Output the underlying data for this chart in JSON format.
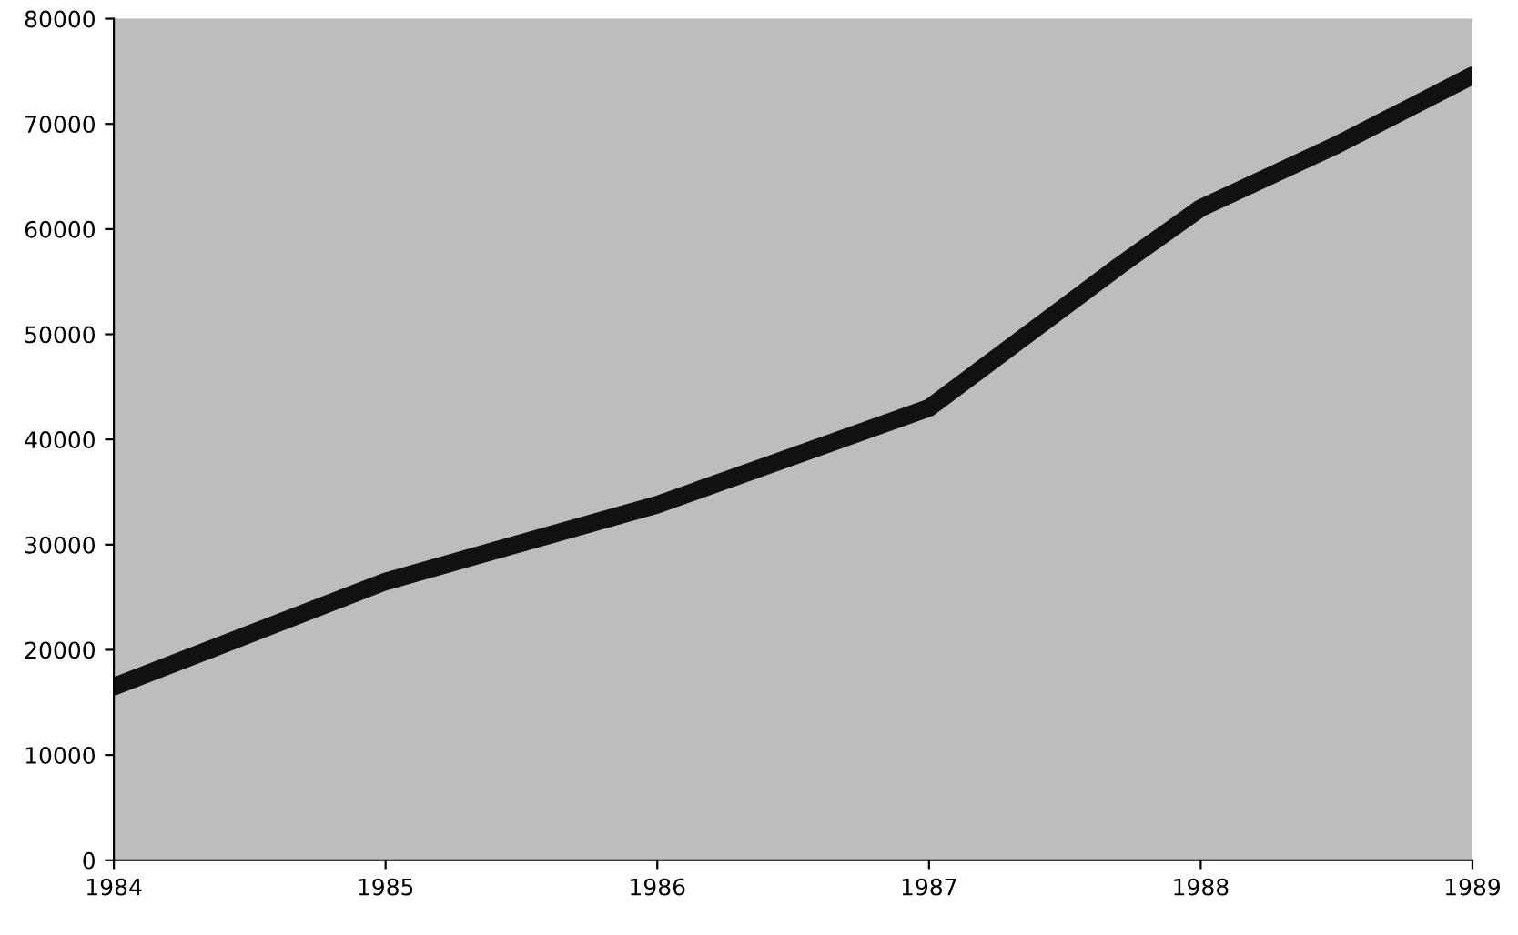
{
  "chart_data": {
    "type": "line",
    "x": [
      1984,
      1985,
      1986,
      1987,
      1987.7,
      1988,
      1988.5,
      1989
    ],
    "series": [
      {
        "color": "#111111",
        "values": [
          16500,
          26500,
          33800,
          43000,
          56500,
          62000,
          68000,
          74600
        ]
      }
    ],
    "xlim": [
      1984,
      1989
    ],
    "xticks": [
      1984,
      1985,
      1986,
      1987,
      1988,
      1989
    ],
    "ylim": [
      0,
      80000
    ],
    "yticks": [
      0,
      10000,
      20000,
      30000,
      40000,
      50000,
      60000,
      70000,
      80000
    ],
    "grid": false,
    "legend": false,
    "marker": "none",
    "line_style": "solid"
  }
}
